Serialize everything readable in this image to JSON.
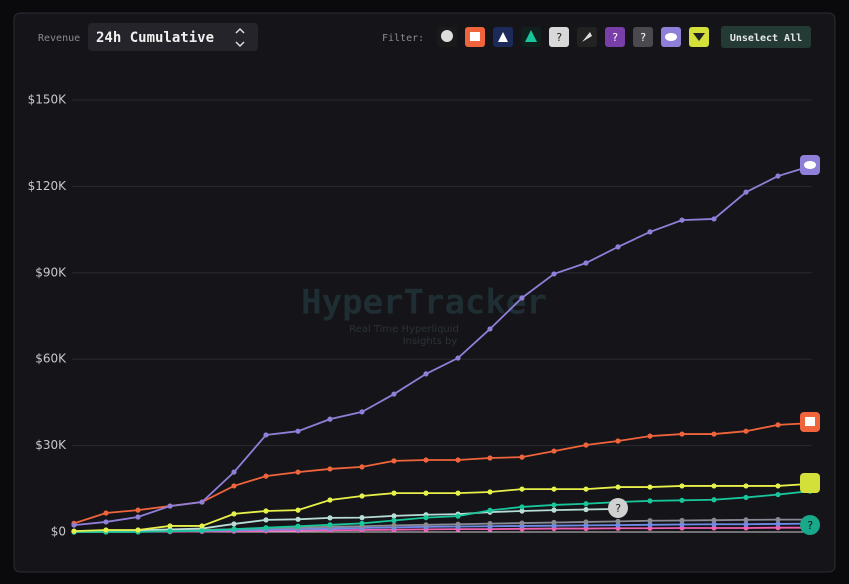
{
  "ui": {
    "revenue_label": "Revenue",
    "mode": "24h Cumulative",
    "filter_label": "Filter:",
    "button": "Unselect All",
    "unknown_icon": "?",
    "watermark": "HyperTracker",
    "watermark_sub1": "Real Time Hyperliquid",
    "watermark_sub2": "Insights by"
  },
  "chart_data": {
    "type": "line",
    "categories": [
      null,
      null,
      null,
      null,
      null,
      null,
      null,
      null,
      null,
      null,
      null,
      null,
      null,
      null,
      null,
      null,
      null,
      null,
      null,
      null,
      null,
      null,
      null,
      null
    ],
    "ylim": [
      0,
      150000
    ],
    "yticks": [
      {
        "value": 0,
        "label": "$0"
      },
      {
        "value": 30000,
        "label": "$30K"
      },
      {
        "value": 60000,
        "label": "$60K"
      },
      {
        "value": 90000,
        "label": "$90K"
      },
      {
        "value": 120000,
        "label": "$120K"
      },
      {
        "value": 150000,
        "label": "$150K"
      }
    ],
    "grid": true,
    "series": [
      {
        "color": "#ef5fb0",
        "values": [
          0,
          0,
          100,
          100,
          200,
          300,
          400,
          500,
          600,
          700,
          800,
          900,
          1000,
          1000,
          1100,
          1200,
          1200,
          1300,
          1300,
          1400,
          1400,
          1400,
          1500,
          1500
        ]
      },
      {
        "color": "#6f8be8",
        "values": [
          0,
          100,
          200,
          300,
          400,
          600,
          800,
          1000,
          1200,
          1400,
          1600,
          1800,
          1900,
          2000,
          2100,
          2200,
          2300,
          2400,
          2500,
          2600,
          2700,
          2700,
          2800,
          2900
        ]
      },
      {
        "color": "#8a8a94",
        "values": [
          0,
          200,
          300,
          500,
          700,
          1000,
          1300,
          1500,
          1800,
          2000,
          2300,
          2500,
          2700,
          2900,
          3100,
          3300,
          3500,
          3700,
          3900,
          4000,
          4100,
          4200,
          4300,
          4300
        ]
      },
      {
        "color": "#b8dcd6",
        "values": [
          200,
          400,
          600,
          900,
          1200,
          2800,
          4200,
          4400,
          4900,
          5000,
          5600,
          6000,
          6200,
          6900,
          7300,
          7600,
          7800,
          8000,
          null,
          null,
          null,
          null,
          null,
          null
        ]
      },
      {
        "color": "#19c59a",
        "values": [
          0,
          0,
          0,
          300,
          500,
          1000,
          1500,
          2000,
          2500,
          3000,
          4000,
          5000,
          5500,
          7500,
          8700,
          9400,
          9800,
          10400,
          10800,
          11000,
          11200,
          12000,
          13000,
          14200
        ]
      },
      {
        "color": "#e8f04a",
        "values": [
          300,
          700,
          700,
          2100,
          2100,
          6300,
          7300,
          7600,
          11100,
          12500,
          13500,
          13500,
          13500,
          13900,
          14900,
          14900,
          14900,
          15600,
          15600,
          16000,
          16000,
          16000,
          16000,
          16700
        ]
      },
      {
        "color": "#f0643c",
        "values": [
          3000,
          6600,
          7600,
          9000,
          10400,
          16000,
          19400,
          20800,
          21900,
          22600,
          24700,
          25000,
          25000,
          25700,
          26000,
          28100,
          30200,
          31600,
          33300,
          34000,
          34000,
          35000,
          37200,
          37800
        ]
      },
      {
        "color": "#8f7fd8",
        "values": [
          2400,
          3500,
          5200,
          9000,
          10400,
          20800,
          33700,
          35000,
          39200,
          41700,
          47900,
          54900,
          60400,
          70500,
          81300,
          89600,
          93400,
          99000,
          104200,
          108300,
          108700,
          118000,
          123600,
          127000
        ]
      }
    ]
  }
}
